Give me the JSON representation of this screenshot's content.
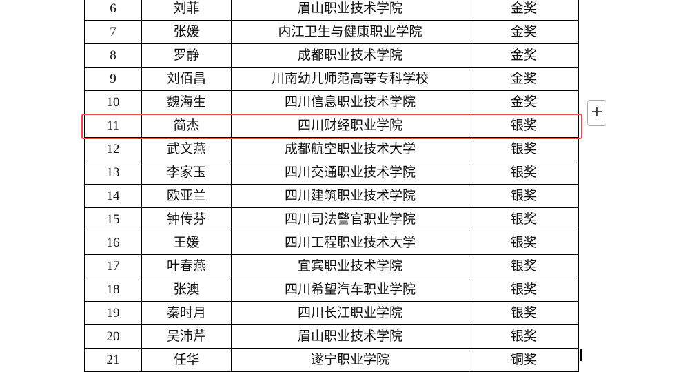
{
  "rows": [
    {
      "no": "6",
      "name": "刘菲",
      "school": "眉山职业技术学院",
      "award": "金奖"
    },
    {
      "no": "7",
      "name": "张媛",
      "school": "内江卫生与健康职业学院",
      "award": "金奖"
    },
    {
      "no": "8",
      "name": "罗静",
      "school": "成都职业技术学院",
      "award": "金奖"
    },
    {
      "no": "9",
      "name": "刘佰昌",
      "school": "川南幼儿师范高等专科学校",
      "award": "金奖"
    },
    {
      "no": "10",
      "name": "魏海生",
      "school": "四川信息职业技术学院",
      "award": "金奖"
    },
    {
      "no": "11",
      "name": "简杰",
      "school": "四川财经职业学院",
      "award": "银奖"
    },
    {
      "no": "12",
      "name": "武文燕",
      "school": "成都航空职业技术大学",
      "award": "银奖"
    },
    {
      "no": "13",
      "name": "李家玉",
      "school": "四川交通职业技术学院",
      "award": "银奖"
    },
    {
      "no": "14",
      "name": "欧亚兰",
      "school": "四川建筑职业技术学院",
      "award": "银奖"
    },
    {
      "no": "15",
      "name": "钟传芬",
      "school": "四川司法警官职业学院",
      "award": "银奖"
    },
    {
      "no": "16",
      "name": "王媛",
      "school": "四川工程职业技术大学",
      "award": "银奖"
    },
    {
      "no": "17",
      "name": "叶春燕",
      "school": "宜宾职业技术学院",
      "award": "银奖"
    },
    {
      "no": "18",
      "name": "张澳",
      "school": "四川希望汽车职业学院",
      "award": "银奖"
    },
    {
      "no": "19",
      "name": "秦时月",
      "school": "四川长江职业学院",
      "award": "银奖"
    },
    {
      "no": "20",
      "name": "吴沛芹",
      "school": "眉山职业技术学院",
      "award": "银奖"
    },
    {
      "no": "21",
      "name": "任华",
      "school": "遂宁职业学院",
      "award": "铜奖"
    }
  ],
  "highlighted_row_no": "11",
  "highlight_color": "#f0474b",
  "add_button": {
    "icon": "plus-icon",
    "label": "+"
  }
}
